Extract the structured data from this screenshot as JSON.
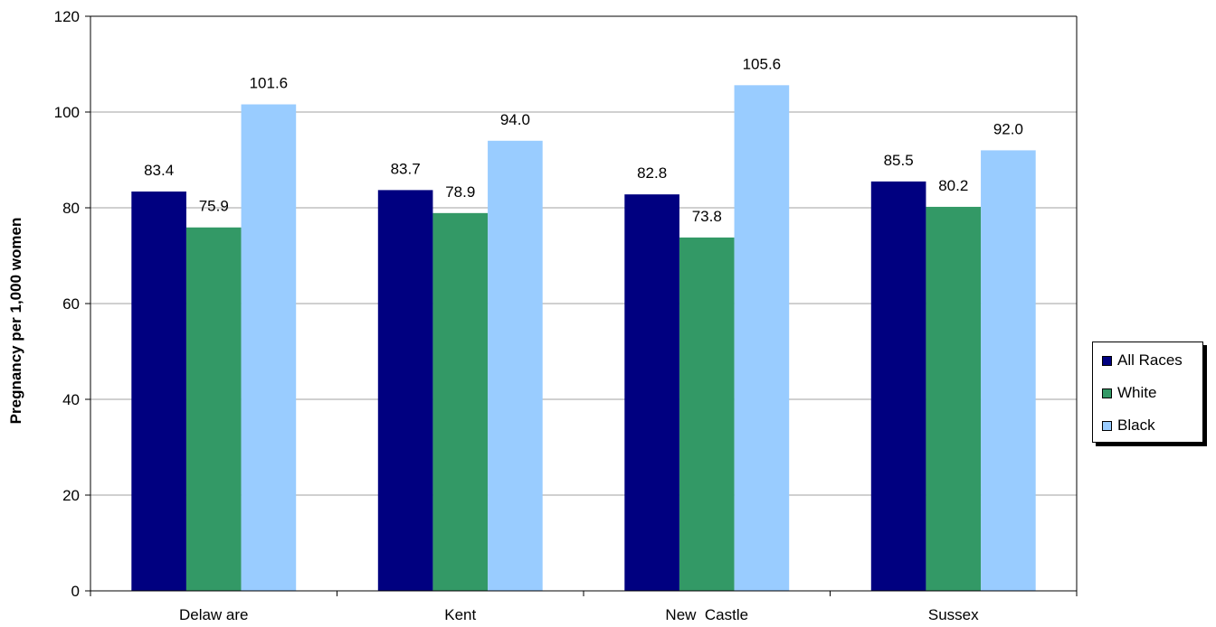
{
  "chart_data": {
    "type": "bar",
    "title": "",
    "xlabel": "",
    "ylabel": "Pregnancy per 1,000 women",
    "ylim": [
      0,
      120
    ],
    "yticks": [
      0,
      20,
      40,
      60,
      80,
      100,
      120
    ],
    "grid": true,
    "legend_position": "right",
    "categories": [
      "Delaw are",
      "Kent",
      "New  Castle",
      "Sussex"
    ],
    "series": [
      {
        "name": "All Races",
        "color": "#000080",
        "values": [
          83.4,
          83.7,
          82.8,
          85.5
        ],
        "labels": [
          "83.4",
          "83.7",
          "82.8",
          "85.5"
        ]
      },
      {
        "name": "White",
        "color": "#339966",
        "values": [
          75.9,
          78.9,
          73.8,
          80.2
        ],
        "labels": [
          "75.9",
          "78.9",
          "73.8",
          "80.2"
        ]
      },
      {
        "name": "Black",
        "color": "#99CCFF",
        "values": [
          101.6,
          94.0,
          105.6,
          92.0
        ],
        "labels": [
          "101.6",
          "94.0",
          "105.6",
          "92.0"
        ]
      }
    ]
  }
}
